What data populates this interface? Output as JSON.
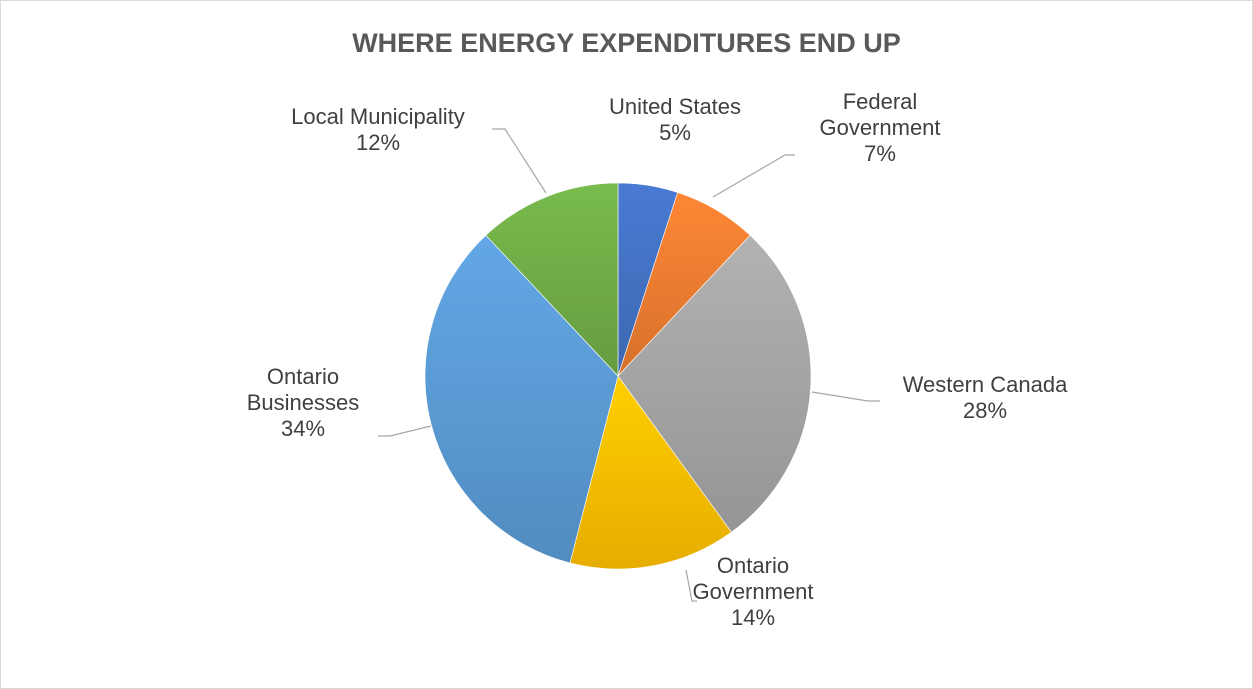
{
  "chart_data": {
    "type": "pie",
    "title": "WHERE ENERGY EXPENDITURES END UP",
    "slices": [
      {
        "label_lines": [
          "United States"
        ],
        "pct_label": "5%",
        "value": 5,
        "color": "#4472c4"
      },
      {
        "label_lines": [
          "Federal",
          "Government"
        ],
        "pct_label": "7%",
        "value": 7,
        "color": "#ed7d31"
      },
      {
        "label_lines": [
          "Western Canada"
        ],
        "pct_label": "28%",
        "value": 28,
        "color": "#a5a5a5"
      },
      {
        "label_lines": [
          "Ontario",
          "Government"
        ],
        "pct_label": "14%",
        "value": 14,
        "color": "#ffc000"
      },
      {
        "label_lines": [
          "Ontario",
          "Businesses"
        ],
        "pct_label": "34%",
        "value": 34,
        "color": "#5b9bd5"
      },
      {
        "label_lines": [
          "Local Municipality"
        ],
        "pct_label": "12%",
        "value": 12,
        "color": "#70ad47"
      }
    ],
    "start_position": "12 o'clock",
    "direction": "clockwise",
    "legend": "none",
    "data_labels": "outside with leader lines"
  }
}
